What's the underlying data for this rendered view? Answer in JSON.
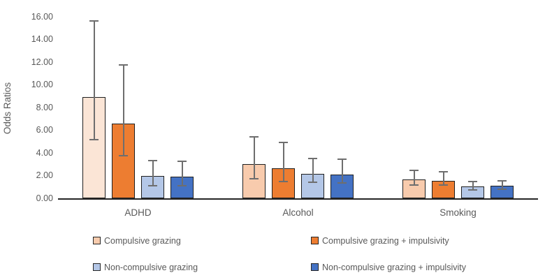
{
  "chart_data": {
    "type": "bar",
    "title": "",
    "xlabel": "",
    "ylabel": "Odds Ratios",
    "ylim": [
      0,
      16
    ],
    "ytick_step": 2,
    "ytick_decimals": 2,
    "grid": false,
    "legend_position": "bottom",
    "categories": [
      "ADHD",
      "Alcohol",
      "Smoking"
    ],
    "series": [
      {
        "name": "Compulsive grazing",
        "color": "#F8CBAD",
        "point_colors": [
          "#FBE5D6",
          "#F8CBAD",
          "#F8CBAD"
        ],
        "values": [
          8.9,
          3.0,
          1.65
        ],
        "error_low": [
          5.1,
          1.65,
          1.1
        ],
        "error_high": [
          15.7,
          5.5,
          2.5
        ]
      },
      {
        "name": "Compulsive grazing + impulsivity",
        "color": "#ED7D31",
        "values": [
          6.6,
          2.65,
          1.55
        ],
        "error_low": [
          3.7,
          1.4,
          1.1
        ],
        "error_high": [
          11.8,
          5.0,
          2.4
        ]
      },
      {
        "name": "Non-compulsive grazing",
        "color": "#B4C7E7",
        "values": [
          1.95,
          2.15,
          1.05
        ],
        "error_low": [
          1.05,
          1.35,
          0.7
        ],
        "error_high": [
          3.4,
          3.55,
          1.55
        ]
      },
      {
        "name": "Non-compulsive grazing + impulsivity",
        "color": "#4472C4",
        "values": [
          1.9,
          2.1,
          1.1
        ],
        "error_low": [
          1.05,
          1.3,
          0.75
        ],
        "error_high": [
          3.35,
          3.5,
          1.6
        ]
      }
    ],
    "colors": {
      "bar_border": "#1F1F1F",
      "error_bar": "#6E6E6E",
      "axis_line": "#262626",
      "text": "#595959"
    }
  }
}
